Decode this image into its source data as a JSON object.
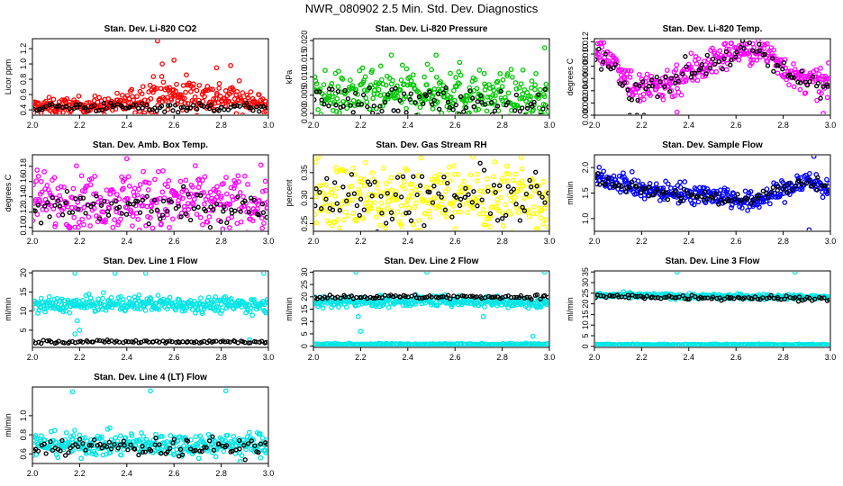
{
  "page": {
    "title": "NWR_080902  2.5 Min. Std. Dev. Diagnostics"
  },
  "chart_data": [
    {
      "type": "scatter",
      "title": "Stan. Dev. Li-820 CO2",
      "ylabel": "Licor ppm",
      "xlim": [
        2.0,
        3.0
      ],
      "ylim": [
        0.33,
        1.33
      ],
      "xticks": [
        2.0,
        2.2,
        2.4,
        2.6,
        2.8,
        3.0
      ],
      "yticks": [
        0.4,
        0.6,
        0.8,
        1.0,
        1.2
      ],
      "ydecimals": 1,
      "grid": false,
      "series": [
        {
          "name": "colored",
          "color": "#ff0000",
          "segments": [
            [
              2.0,
              0.44,
              0.05
            ],
            [
              2.35,
              0.46,
              0.06
            ],
            [
              2.5,
              0.58,
              0.12
            ],
            [
              2.65,
              0.6,
              0.12
            ],
            [
              2.85,
              0.55,
              0.1
            ],
            [
              3.0,
              0.45,
              0.06
            ]
          ],
          "outliers": [
            [
              2.53,
              1.3
            ],
            [
              2.55,
              1.0
            ],
            [
              2.6,
              1.05
            ],
            [
              2.78,
              0.95
            ],
            [
              2.84,
              0.98
            ]
          ]
        },
        {
          "name": "black",
          "color": "#000000",
          "segments": [
            [
              2.0,
              0.44,
              0.03
            ],
            [
              3.0,
              0.43,
              0.03
            ]
          ]
        }
      ]
    },
    {
      "type": "scatter",
      "title": "Stan. Dev. Li-820 Pressure",
      "ylabel": "kPa",
      "xlim": [
        2.0,
        3.0
      ],
      "ylim": [
        -0.0005,
        0.0205
      ],
      "xticks": [
        2.0,
        2.2,
        2.4,
        2.6,
        2.8,
        3.0
      ],
      "yticks": [
        0.0,
        0.005,
        0.01,
        0.015,
        0.02
      ],
      "ydecimals": 3,
      "grid": false,
      "series": [
        {
          "name": "colored",
          "color": "#00c800",
          "segments": [
            [
              2.0,
              0.005,
              0.003
            ],
            [
              2.5,
              0.006,
              0.003
            ],
            [
              3.0,
              0.004,
              0.003
            ]
          ],
          "outliers": [
            [
              2.33,
              0.016
            ],
            [
              2.52,
              0.016
            ],
            [
              2.5,
              0.012
            ],
            [
              2.62,
              0.014
            ],
            [
              2.58,
              0.011
            ],
            [
              2.98,
              0.018
            ]
          ]
        },
        {
          "name": "black",
          "color": "#000000",
          "segments": [
            [
              2.0,
              0.004,
              0.002
            ],
            [
              3.0,
              0.002,
              0.002
            ]
          ]
        }
      ]
    },
    {
      "type": "scatter",
      "title": "Stan. Dev. Li-820 Temp.",
      "ylabel": "degrees C",
      "xlim": [
        2.0,
        3.0
      ],
      "ylim": [
        0.0,
        0.0125
      ],
      "xticks": [
        2.0,
        2.2,
        2.4,
        2.6,
        2.8,
        3.0
      ],
      "yticks": [
        0.0,
        0.002,
        0.004,
        0.006,
        0.008,
        0.01,
        0.012
      ],
      "ydecimals": 3,
      "grid": false,
      "series": [
        {
          "name": "colored",
          "color": "#ff00ff",
          "segments": [
            [
              2.0,
              0.011,
              0.001
            ],
            [
              2.08,
              0.009,
              0.001
            ],
            [
              2.18,
              0.004,
              0.0015
            ],
            [
              2.3,
              0.005,
              0.0015
            ],
            [
              2.45,
              0.008,
              0.0015
            ],
            [
              2.6,
              0.0105,
              0.001
            ],
            [
              2.75,
              0.01,
              0.0012
            ],
            [
              2.85,
              0.006,
              0.001
            ],
            [
              3.0,
              0.005,
              0.0012
            ]
          ],
          "outliers": [
            [
              2.35,
              0.0005
            ],
            [
              2.97,
              0.0003
            ]
          ]
        },
        {
          "name": "black",
          "color": "#000000",
          "segments": [
            [
              2.0,
              0.0105,
              0.001
            ],
            [
              2.15,
              0.004,
              0.001
            ],
            [
              2.4,
              0.007,
              0.001
            ],
            [
              2.65,
              0.011,
              0.001
            ],
            [
              2.85,
              0.006,
              0.001
            ],
            [
              3.0,
              0.005,
              0.001
            ]
          ],
          "outliers": [
            [
              2.15,
              0.0
            ],
            [
              2.18,
              0.0
            ],
            [
              2.21,
              0.0
            ]
          ]
        }
      ]
    },
    {
      "type": "scatter",
      "title": "Stan. Dev. Amb. Box Temp.",
      "ylabel": "degrees C",
      "xlim": [
        2.0,
        3.0
      ],
      "ylim": [
        0.095,
        0.195
      ],
      "xticks": [
        2.0,
        2.2,
        2.4,
        2.6,
        2.8,
        3.0
      ],
      "yticks": [
        0.1,
        0.12,
        0.14,
        0.16,
        0.18
      ],
      "ydecimals": 2,
      "grid": false,
      "series": [
        {
          "name": "colored",
          "color": "#ff00ff",
          "segments": [
            [
              2.0,
              0.135,
              0.018
            ],
            [
              2.5,
              0.135,
              0.02
            ],
            [
              3.0,
              0.13,
              0.018
            ]
          ],
          "outliers": [
            [
              2.4,
              0.19
            ],
            [
              2.02,
              0.175
            ],
            [
              2.58,
              0.1
            ]
          ]
        },
        {
          "name": "black",
          "color": "#000000",
          "segments": [
            [
              2.0,
              0.125,
              0.01
            ],
            [
              3.0,
              0.125,
              0.01
            ]
          ]
        }
      ]
    },
    {
      "type": "scatter",
      "title": "Stan. Dev. Gas Stream RH",
      "ylabel": "percent",
      "xlim": [
        2.0,
        3.0
      ],
      "ylim": [
        0.235,
        0.385
      ],
      "xticks": [
        2.0,
        2.2,
        2.4,
        2.6,
        2.8,
        3.0
      ],
      "yticks": [
        0.25,
        0.3,
        0.35
      ],
      "ydecimals": 2,
      "grid": false,
      "series": [
        {
          "name": "colored",
          "color": "#ffff00",
          "segments": [
            [
              2.0,
              0.3,
              0.035
            ],
            [
              2.5,
              0.3,
              0.035
            ],
            [
              3.0,
              0.3,
              0.035
            ]
          ],
          "outliers": [
            [
              2.02,
              0.38
            ],
            [
              2.88,
              0.38
            ],
            [
              2.6,
              0.24
            ]
          ]
        },
        {
          "name": "black",
          "color": "#000000",
          "segments": [
            [
              2.0,
              0.3,
              0.025
            ],
            [
              3.0,
              0.3,
              0.025
            ]
          ]
        }
      ]
    },
    {
      "type": "scatter",
      "title": "Stan. Dev. Sample Flow",
      "ylabel": "ml/min",
      "xlim": [
        2.0,
        3.0
      ],
      "ylim": [
        0.75,
        2.25
      ],
      "xticks": [
        2.0,
        2.2,
        2.4,
        2.6,
        2.8,
        3.0
      ],
      "yticks": [
        1.0,
        1.5,
        2.0
      ],
      "ydecimals": 1,
      "grid": false,
      "series": [
        {
          "name": "colored",
          "color": "#0000ff",
          "segments": [
            [
              2.0,
              1.8,
              0.08
            ],
            [
              2.1,
              1.75,
              0.1
            ],
            [
              2.2,
              1.55,
              0.1
            ],
            [
              2.4,
              1.5,
              0.1
            ],
            [
              2.55,
              1.45,
              0.1
            ],
            [
              2.65,
              1.3,
              0.1
            ],
            [
              2.75,
              1.45,
              0.1
            ],
            [
              2.9,
              1.75,
              0.12
            ],
            [
              3.0,
              1.6,
              0.12
            ]
          ],
          "outliers": [
            [
              2.91,
              0.78
            ],
            [
              2.93,
              2.22
            ]
          ]
        },
        {
          "name": "black",
          "color": "#000000",
          "segments": [
            [
              2.0,
              1.75,
              0.06
            ],
            [
              2.2,
              1.55,
              0.06
            ],
            [
              2.6,
              1.35,
              0.06
            ],
            [
              2.9,
              1.7,
              0.06
            ],
            [
              3.0,
              1.6,
              0.06
            ]
          ]
        }
      ]
    },
    {
      "type": "scatter",
      "title": "Stan. Dev. Line 1 Flow",
      "ylabel": "ml/min",
      "xlim": [
        2.0,
        3.0
      ],
      "ylim": [
        0.5,
        20.5
      ],
      "xticks": [
        2.0,
        2.2,
        2.4,
        2.6,
        2.8,
        3.0
      ],
      "yticks": [
        5,
        10,
        15,
        20
      ],
      "ydecimals": 0,
      "grid": false,
      "series": [
        {
          "name": "colored",
          "color": "#00e5e5",
          "segments": [
            [
              2.0,
              11.5,
              1.0
            ],
            [
              2.5,
              12.0,
              1.0
            ],
            [
              3.0,
              11.5,
              1.0
            ]
          ],
          "outliers": [
            [
              2.18,
              19.9
            ],
            [
              2.35,
              19.9
            ],
            [
              2.48,
              19.9
            ],
            [
              2.98,
              19.9
            ],
            [
              2.19,
              7.5
            ],
            [
              2.2,
              5.0
            ],
            [
              2.92,
              2.5
            ],
            [
              2.18,
              4.0
            ]
          ]
        },
        {
          "name": "black",
          "color": "#000000",
          "segments": [
            [
              2.0,
              2.0,
              0.2
            ],
            [
              3.0,
              2.0,
              0.2
            ]
          ]
        }
      ]
    },
    {
      "type": "scatter",
      "title": "Stan. Dev. Line 2 Flow",
      "ylabel": "ml/min",
      "xlim": [
        2.0,
        3.0
      ],
      "ylim": [
        -0.5,
        30.5
      ],
      "xticks": [
        2.0,
        2.2,
        2.4,
        2.6,
        2.8,
        3.0
      ],
      "yticks": [
        0,
        5,
        10,
        15,
        20,
        25,
        30
      ],
      "ydecimals": 0,
      "grid": false,
      "series": [
        {
          "name": "colored",
          "color": "#00e5e5",
          "segments": [
            [
              2.0,
              17.5,
              1.2
            ],
            [
              2.5,
              18.5,
              1.0
            ],
            [
              3.0,
              17.5,
              1.2
            ]
          ],
          "outliers": [
            [
              2.18,
              30
            ],
            [
              2.48,
              30
            ],
            [
              2.98,
              30
            ],
            [
              2.19,
              12
            ],
            [
              2.2,
              6
            ],
            [
              2.72,
              12
            ],
            [
              2.93,
              4
            ]
          ]
        },
        {
          "name": "colored-baseline",
          "color": "#00e5e5",
          "segments": [
            [
              2.0,
              0.8,
              0.15
            ],
            [
              3.0,
              0.8,
              0.15
            ]
          ]
        },
        {
          "name": "black",
          "color": "#000000",
          "segments": [
            [
              2.0,
              20.0,
              0.4
            ],
            [
              3.0,
              20.0,
              0.4
            ]
          ]
        }
      ]
    },
    {
      "type": "scatter",
      "title": "Stan. Dev. Line 3 Flow",
      "ylabel": "ml/min",
      "xlim": [
        2.0,
        3.0
      ],
      "ylim": [
        -0.5,
        35.5
      ],
      "xticks": [
        2.0,
        2.2,
        2.4,
        2.6,
        2.8,
        3.0
      ],
      "yticks": [
        0,
        5,
        10,
        15,
        20,
        25,
        30,
        35
      ],
      "ydecimals": 0,
      "grid": false,
      "series": [
        {
          "name": "colored",
          "color": "#00e5e5",
          "segments": [
            [
              2.0,
              24.0,
              0.6
            ],
            [
              3.0,
              23.0,
              0.6
            ]
          ],
          "outliers": [
            [
              2.35,
              35
            ],
            [
              2.85,
              35
            ]
          ]
        },
        {
          "name": "colored-baseline",
          "color": "#00e5e5",
          "segments": [
            [
              2.0,
              0.8,
              0.15
            ],
            [
              3.0,
              0.8,
              0.15
            ]
          ]
        },
        {
          "name": "black",
          "color": "#000000",
          "segments": [
            [
              2.0,
              23.5,
              0.6
            ],
            [
              3.0,
              22.5,
              0.6
            ]
          ]
        }
      ]
    },
    {
      "type": "scatter",
      "title": "Stan. Dev. Line 4 (LT) Flow",
      "ylabel": "ml/min",
      "xlim": [
        2.0,
        3.0
      ],
      "ylim": [
        0.5,
        1.3
      ],
      "xticks": [
        2.0,
        2.2,
        2.4,
        2.6,
        2.8,
        3.0
      ],
      "yticks": [
        0.6,
        0.8,
        1.0
      ],
      "ydecimals": 1,
      "grid": false,
      "series": [
        {
          "name": "colored",
          "color": "#00e5e5",
          "segments": [
            [
              2.0,
              0.7,
              0.06
            ],
            [
              2.5,
              0.7,
              0.06
            ],
            [
              3.0,
              0.7,
              0.06
            ]
          ],
          "outliers": [
            [
              2.17,
              1.25
            ],
            [
              2.5,
              1.26
            ],
            [
              2.82,
              1.26
            ],
            [
              2.88,
              0.52
            ]
          ]
        },
        {
          "name": "black",
          "color": "#000000",
          "segments": [
            [
              2.0,
              0.68,
              0.05
            ],
            [
              3.0,
              0.67,
              0.05
            ]
          ]
        }
      ]
    }
  ]
}
